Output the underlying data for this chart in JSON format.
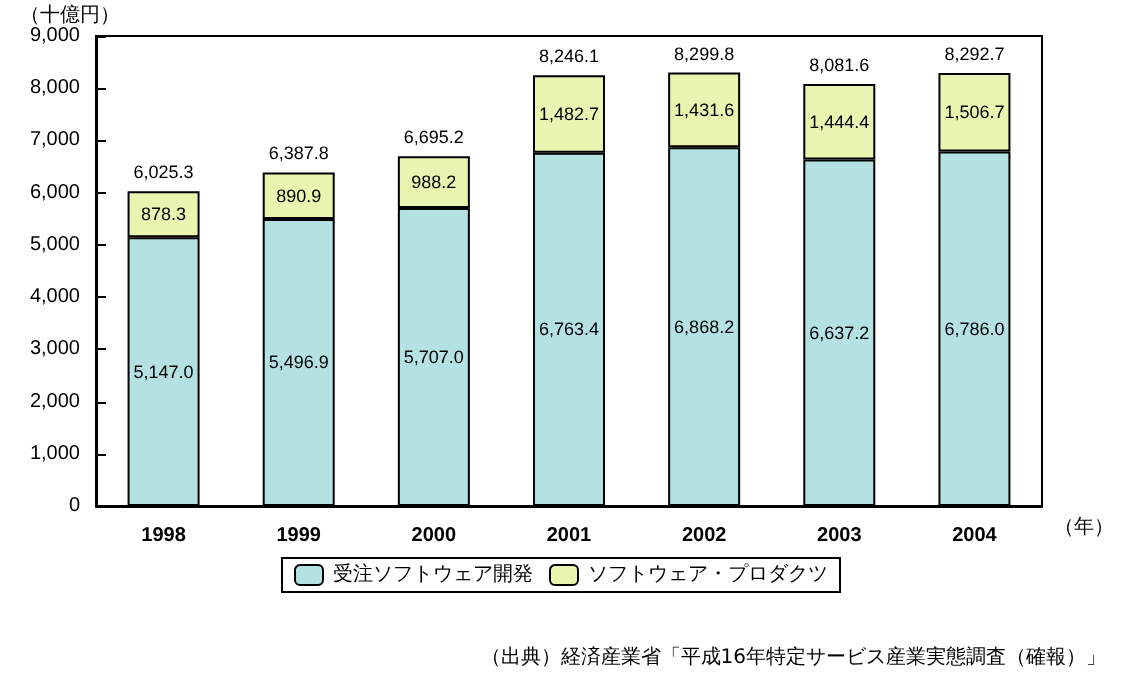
{
  "chart_data": {
    "type": "bar",
    "stacked": true,
    "ylabel": "（十億円）",
    "xlabel": "（年）",
    "categories": [
      "1998",
      "1999",
      "2000",
      "2001",
      "2002",
      "2003",
      "2004"
    ],
    "series": [
      {
        "name": "受注ソフトウェア開発",
        "color": "#b4e2e2",
        "values": [
          5147.0,
          5496.9,
          5707.0,
          6763.4,
          6868.2,
          6637.2,
          6786.0
        ],
        "value_labels": [
          "5,147.0",
          "5,496.9",
          "5,707.0",
          "6,763.4",
          "6,868.2",
          "6,637.2",
          "6,786.0"
        ]
      },
      {
        "name": "ソフトウェア・プロダクツ",
        "color": "#e8f4b0",
        "values": [
          878.3,
          890.9,
          988.2,
          1482.7,
          1431.6,
          1444.4,
          1506.7
        ],
        "value_labels": [
          "878.3",
          "890.9",
          "988.2",
          "1,482.7",
          "1,431.6",
          "1,444.4",
          "1,506.7"
        ]
      }
    ],
    "totals": [
      "6,025.3",
      "6,387.8",
      "6,695.2",
      "8,246.1",
      "8,299.8",
      "8,081.6",
      "8,292.7"
    ],
    "ylim": [
      0,
      9000
    ],
    "yticks": [
      0,
      {
        "value": 1000,
        "label": "1,000"
      },
      {
        "value": 2000,
        "label": "2,000"
      },
      {
        "value": 3000,
        "label": "3,000"
      },
      {
        "value": 4000,
        "label": "4,000"
      },
      {
        "value": 5000,
        "label": "5,000"
      },
      {
        "value": 6000,
        "label": "6,000"
      },
      {
        "value": 7000,
        "label": "7,000"
      },
      {
        "value": 8000,
        "label": "8,000"
      },
      {
        "value": 9000,
        "label": "9,000"
      }
    ],
    "grid": false,
    "legend": "bottom",
    "annotations": [
      "（出典）経済産業省「平成16年特定サービス産業実態調査（確報）」"
    ]
  }
}
